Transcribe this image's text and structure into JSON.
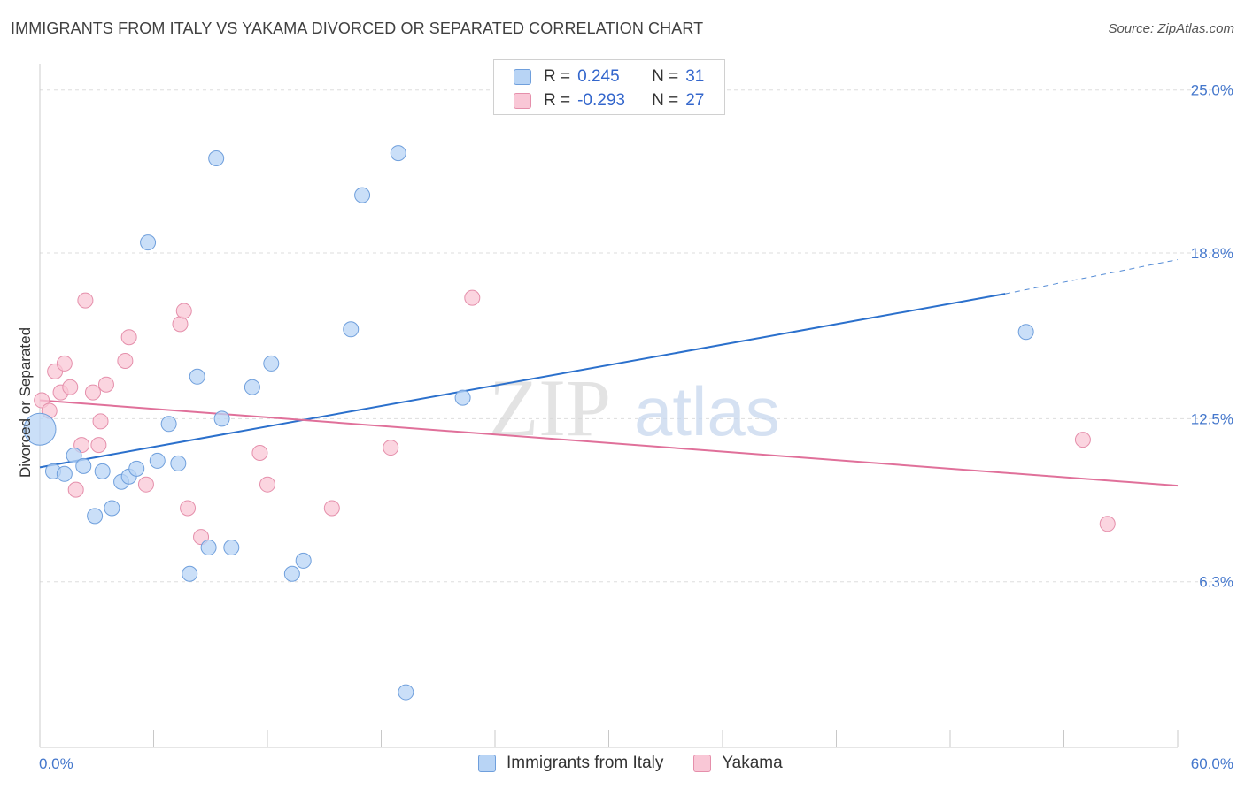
{
  "title": "IMMIGRANTS FROM ITALY VS YAKAMA DIVORCED OR SEPARATED CORRELATION CHART",
  "source": "Source: ZipAtlas.com",
  "watermark": {
    "zip": "ZIP",
    "atlas": "atlas"
  },
  "legend": {
    "rows": [
      {
        "r_label": "R =",
        "r_value": "0.245",
        "n_label": "N =",
        "n_value": "31"
      },
      {
        "r_label": "R =",
        "r_value": "-0.293",
        "n_label": "N =",
        "n_value": "27"
      }
    ]
  },
  "colors": {
    "series1_fill": "#b8d4f5",
    "series1_stroke": "#6f9fdc",
    "series1_line": "#2b70cc",
    "series2_fill": "#f9c7d6",
    "series2_stroke": "#e58fab",
    "series2_line": "#e0709a",
    "grid": "#dddddd",
    "tick_text": "#4477cc"
  },
  "chart_data": {
    "type": "scatter",
    "title": "IMMIGRANTS FROM ITALY VS YAKAMA DIVORCED OR SEPARATED CORRELATION CHART",
    "xlabel": "",
    "ylabel": "Divorced or Separated",
    "xlim": [
      0,
      60
    ],
    "ylim": [
      0,
      26
    ],
    "x_tick_labels": [
      "0.0%",
      "60.0%"
    ],
    "y_tick_values": [
      6.3,
      12.5,
      18.8,
      25.0
    ],
    "y_tick_labels": [
      "6.3%",
      "12.5%",
      "18.8%",
      "25.0%"
    ],
    "grid": true,
    "legend_placement": "top-center",
    "series": [
      {
        "name": "Immigrants from Italy",
        "points": [
          [
            0.0,
            12.1
          ],
          [
            0.7,
            10.5
          ],
          [
            1.3,
            10.4
          ],
          [
            1.8,
            11.1
          ],
          [
            2.3,
            10.7
          ],
          [
            2.9,
            8.8
          ],
          [
            3.3,
            10.5
          ],
          [
            3.8,
            9.1
          ],
          [
            4.3,
            10.1
          ],
          [
            4.7,
            10.3
          ],
          [
            5.1,
            10.6
          ],
          [
            5.7,
            19.2
          ],
          [
            6.2,
            10.9
          ],
          [
            6.8,
            12.3
          ],
          [
            7.3,
            10.8
          ],
          [
            7.9,
            6.6
          ],
          [
            8.3,
            14.1
          ],
          [
            8.9,
            7.6
          ],
          [
            9.3,
            22.4
          ],
          [
            9.6,
            12.5
          ],
          [
            10.1,
            7.6
          ],
          [
            11.2,
            13.7
          ],
          [
            12.2,
            14.6
          ],
          [
            13.3,
            6.6
          ],
          [
            13.9,
            7.1
          ],
          [
            16.4,
            15.9
          ],
          [
            17.0,
            21.0
          ],
          [
            18.9,
            22.6
          ],
          [
            19.3,
            2.1
          ],
          [
            22.3,
            13.3
          ],
          [
            52.0,
            15.8
          ]
        ],
        "trend": {
          "x0": 0,
          "y0": 10.65,
          "x1": 50.9,
          "y1": 17.25,
          "dash_to_x": 60,
          "dash_to_y": 18.55
        }
      },
      {
        "name": "Yakama",
        "points": [
          [
            0.1,
            13.2
          ],
          [
            0.5,
            12.8
          ],
          [
            0.8,
            14.3
          ],
          [
            1.1,
            13.5
          ],
          [
            1.3,
            14.6
          ],
          [
            1.6,
            13.7
          ],
          [
            1.9,
            9.8
          ],
          [
            2.2,
            11.5
          ],
          [
            2.4,
            17.0
          ],
          [
            2.8,
            13.5
          ],
          [
            3.1,
            11.5
          ],
          [
            3.2,
            12.4
          ],
          [
            3.5,
            13.8
          ],
          [
            4.5,
            14.7
          ],
          [
            4.7,
            15.6
          ],
          [
            5.6,
            10.0
          ],
          [
            7.4,
            16.1
          ],
          [
            7.6,
            16.6
          ],
          [
            7.8,
            9.1
          ],
          [
            8.5,
            8.0
          ],
          [
            11.6,
            11.2
          ],
          [
            12.0,
            10.0
          ],
          [
            15.4,
            9.1
          ],
          [
            18.5,
            11.4
          ],
          [
            22.8,
            17.1
          ],
          [
            55.0,
            11.7
          ],
          [
            56.3,
            8.5
          ]
        ],
        "trend": {
          "x0": 0,
          "y0": 13.2,
          "x1": 60,
          "y1": 9.95
        }
      }
    ]
  }
}
